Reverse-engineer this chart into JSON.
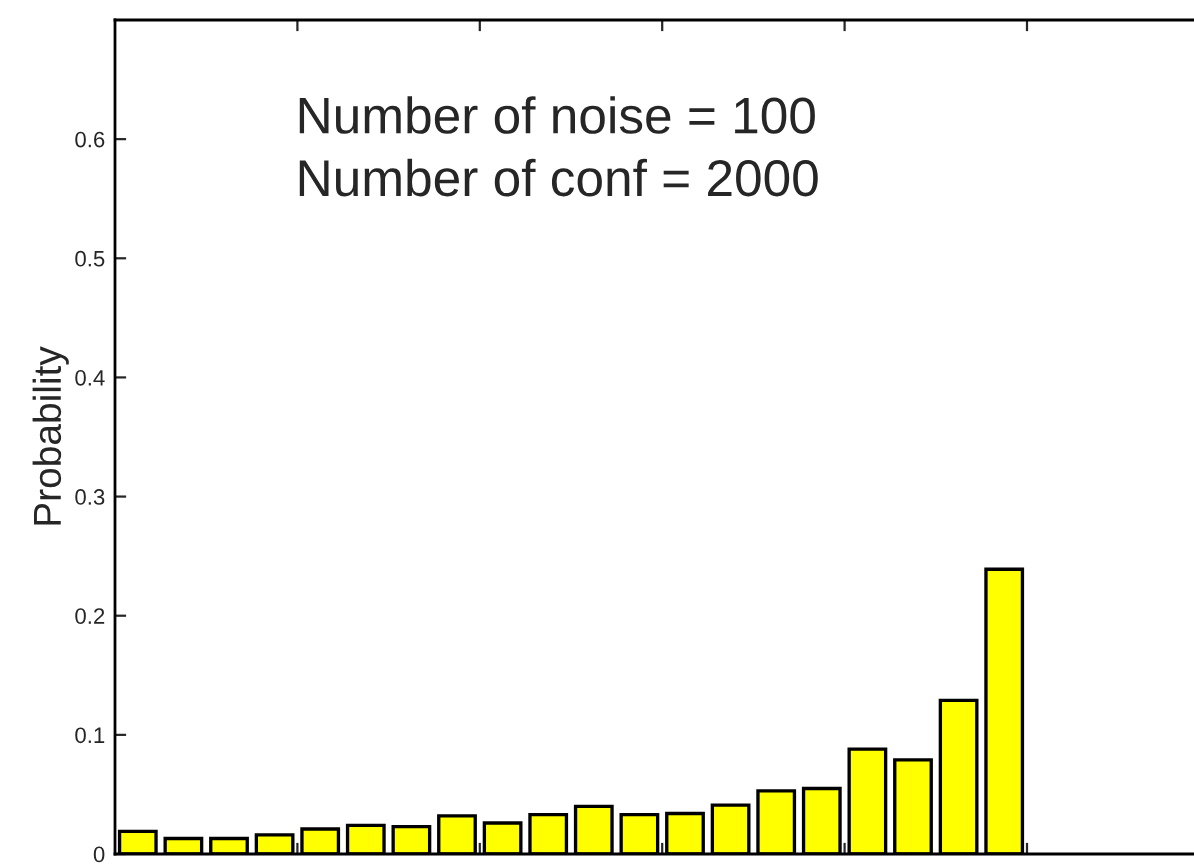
{
  "chart_data": {
    "type": "bar",
    "categories": [
      null,
      null,
      null,
      null,
      null,
      null,
      null,
      null,
      null,
      null,
      null,
      null,
      null,
      null,
      null,
      null,
      null,
      null,
      null,
      null
    ],
    "values": [
      0.019,
      0.013,
      0.013,
      0.016,
      0.021,
      0.024,
      0.023,
      0.032,
      0.026,
      0.033,
      0.04,
      0.033,
      0.034,
      0.041,
      0.053,
      0.055,
      0.088,
      0.079,
      0.129,
      0.239
    ],
    "color": "#ffff00",
    "ylabel": "Probability",
    "ylim": [
      0,
      0.7
    ],
    "yticks": [
      0,
      0.1,
      0.2,
      0.3,
      0.4,
      0.5,
      0.6
    ],
    "annotations": [
      "Number of noise = 100",
      "Number of conf = 2000"
    ],
    "grid": false,
    "legend": false
  }
}
